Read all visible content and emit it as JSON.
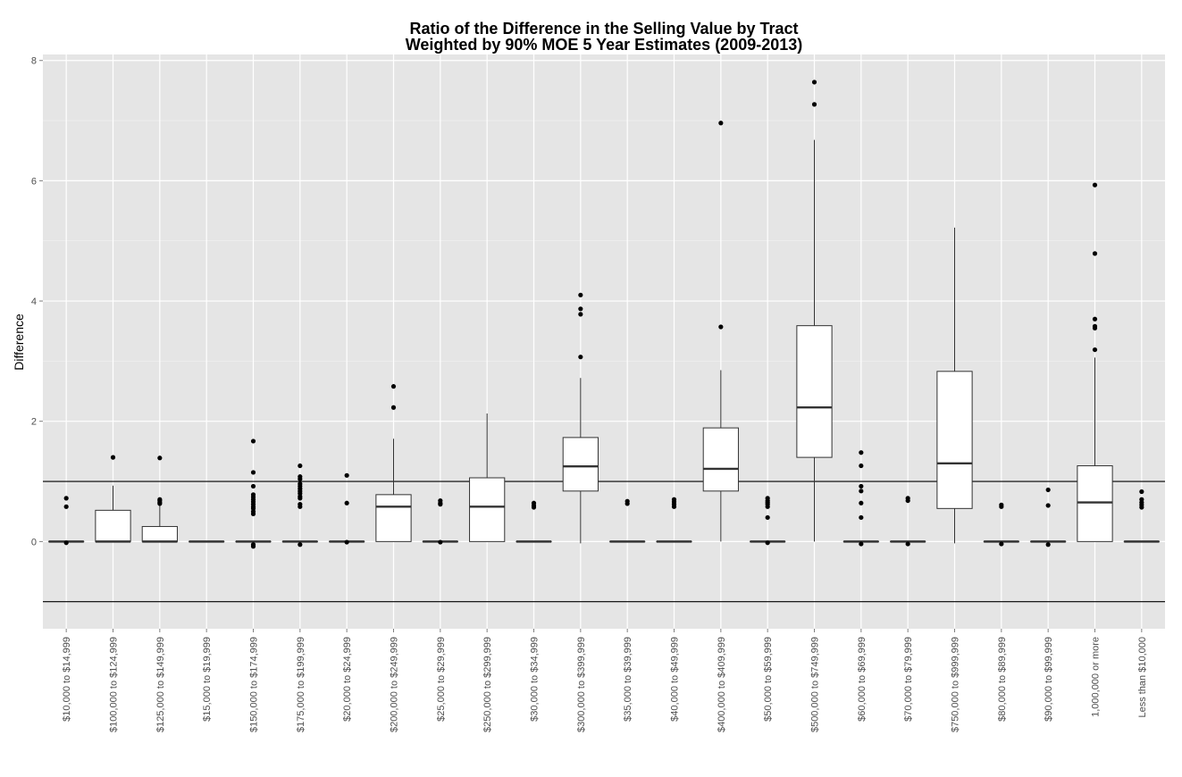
{
  "chart_data": {
    "type": "box",
    "title": "Ratio of the Difference in the Selling Value by Tract",
    "subtitle": "Weighted by 90% MOE 5 Year Estimates (2009-2013)",
    "xlabel": "",
    "ylabel": "Difference",
    "ylim": [
      -1.45,
      8.1
    ],
    "yticks": [
      0,
      2,
      4,
      6,
      8
    ],
    "reference_lines": [
      1,
      -1
    ],
    "grid": true,
    "background": "#e5e5e5",
    "categories": [
      "$10,000 to $14,999",
      "$100,000 to $124,999",
      "$125,000 to $149,999",
      "$15,000 to $19,999",
      "$150,000 to $174,999",
      "$175,000 to $199,999",
      "$20,000 to $24,999",
      "$200,000 to $249,999",
      "$25,000 to $29,999",
      "$250,000 to $299,999",
      "$30,000 to $34,999",
      "$300,000 to $399,999",
      "$35,000 to $39,999",
      "$40,000 to $49,999",
      "$400,000 to $409,999",
      "$50,000 to $59,999",
      "$500,000 to $749,999",
      "$60,000 to $69,999",
      "$70,000 to $79,999",
      "$750,000 to $999,999",
      "$80,000 to $89,999",
      "$90,000 to $99,999",
      "1,000,000 or more",
      "Less than $10,000"
    ],
    "boxes": [
      {
        "min": 0,
        "q1": 0,
        "median": 0,
        "q3": 0,
        "max": 0,
        "outliers": [
          0.72,
          0.58,
          -0.02
        ]
      },
      {
        "min": 0,
        "q1": 0,
        "median": 0,
        "q3": 0.52,
        "max": 0.93,
        "outliers": [
          1.4
        ]
      },
      {
        "min": 0,
        "q1": 0,
        "median": 0,
        "q3": 0.25,
        "max": 0.6,
        "outliers": [
          1.39,
          0.7,
          0.68,
          0.65,
          0.63
        ]
      },
      {
        "min": 0,
        "q1": 0,
        "median": 0,
        "q3": 0,
        "max": 0,
        "outliers": []
      },
      {
        "min": 0,
        "q1": 0,
        "median": 0,
        "q3": 0,
        "max": 0,
        "outliers": [
          1.67,
          1.15,
          0.92,
          0.78,
          0.74,
          0.7,
          0.66,
          0.62,
          0.58,
          0.55,
          0.5,
          0.46,
          -0.05,
          -0.08
        ]
      },
      {
        "min": 0,
        "q1": 0,
        "median": 0,
        "q3": 0,
        "max": 0,
        "outliers": [
          1.26,
          1.08,
          1.04,
          0.96,
          0.92,
          0.88,
          0.84,
          0.8,
          0.75,
          0.72,
          0.62,
          0.58,
          -0.05
        ]
      },
      {
        "min": 0,
        "q1": 0,
        "median": 0,
        "q3": 0,
        "max": 0,
        "outliers": [
          1.1,
          0.64,
          -0.01
        ]
      },
      {
        "min": 0,
        "q1": 0,
        "median": 0.58,
        "q3": 0.78,
        "max": 1.71,
        "outliers": [
          2.58,
          2.23
        ]
      },
      {
        "min": 0,
        "q1": 0,
        "median": 0,
        "q3": 0,
        "max": 0,
        "outliers": [
          0.68,
          0.64,
          0.62,
          -0.01
        ]
      },
      {
        "min": 0,
        "q1": 0,
        "median": 0.58,
        "q3": 1.06,
        "max": 2.13,
        "outliers": []
      },
      {
        "min": 0,
        "q1": 0,
        "median": 0,
        "q3": 0,
        "max": 0,
        "outliers": [
          0.64,
          0.6,
          0.57
        ]
      },
      {
        "min": -0.03,
        "q1": 0.84,
        "median": 1.25,
        "q3": 1.73,
        "max": 2.72,
        "outliers": [
          4.1,
          3.87,
          3.78,
          3.07
        ]
      },
      {
        "min": 0,
        "q1": 0,
        "median": 0,
        "q3": 0,
        "max": 0,
        "outliers": [
          0.67,
          0.63
        ]
      },
      {
        "min": 0,
        "q1": 0,
        "median": 0,
        "q3": 0,
        "max": 0,
        "outliers": [
          0.7,
          0.66,
          0.62,
          0.58
        ]
      },
      {
        "min": 0,
        "q1": 0.84,
        "median": 1.21,
        "q3": 1.89,
        "max": 2.85,
        "outliers": [
          6.96,
          3.57
        ]
      },
      {
        "min": 0,
        "q1": 0,
        "median": 0,
        "q3": 0,
        "max": 0,
        "outliers": [
          0.72,
          0.68,
          0.65,
          0.62,
          0.58,
          0.4,
          -0.02
        ]
      },
      {
        "min": 0,
        "q1": 1.4,
        "median": 2.23,
        "q3": 3.59,
        "max": 6.68,
        "outliers": [
          7.64,
          7.27
        ]
      },
      {
        "min": 0,
        "q1": 0,
        "median": 0,
        "q3": 0,
        "max": 0,
        "outliers": [
          1.48,
          1.26,
          0.92,
          0.84,
          0.64,
          0.4,
          -0.04
        ]
      },
      {
        "min": 0,
        "q1": 0,
        "median": 0,
        "q3": 0,
        "max": 0,
        "outliers": [
          0.72,
          0.68,
          -0.04
        ]
      },
      {
        "min": -0.03,
        "q1": 0.55,
        "median": 1.3,
        "q3": 2.83,
        "max": 5.22,
        "outliers": []
      },
      {
        "min": 0,
        "q1": 0,
        "median": 0,
        "q3": 0,
        "max": 0,
        "outliers": [
          0.61,
          0.58,
          -0.04
        ]
      },
      {
        "min": 0,
        "q1": 0,
        "median": 0,
        "q3": 0,
        "max": 0,
        "outliers": [
          0.86,
          0.6,
          -0.05
        ]
      },
      {
        "min": 0,
        "q1": 0,
        "median": 0.65,
        "q3": 1.26,
        "max": 3.06,
        "outliers": [
          5.93,
          4.79,
          3.7,
          3.58,
          3.55,
          3.19
        ]
      },
      {
        "min": 0,
        "q1": 0,
        "median": 0,
        "q3": 0,
        "max": 0,
        "outliers": [
          0.83,
          0.7,
          0.65,
          0.61,
          0.57
        ]
      }
    ]
  }
}
